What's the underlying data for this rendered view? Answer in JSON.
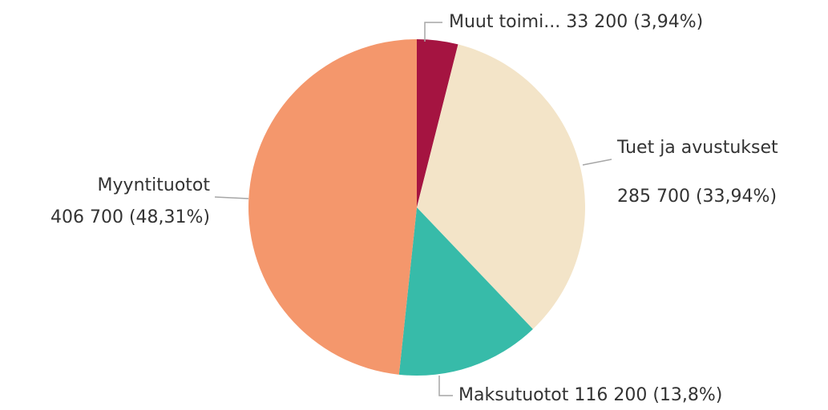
{
  "chart_data": {
    "type": "pie",
    "categories": [
      "Muut toimi...",
      "Tuet ja avustukset",
      "Maksutuotot",
      "Myyntituotot"
    ],
    "values": [
      33200,
      285700,
      116200,
      406700
    ],
    "value_labels": [
      "33 200 (3,94%)",
      "285 700 (33,94%)",
      "116 200 (13,8%)",
      "406 700 (48,31%)"
    ],
    "colors": [
      "#a51441",
      "#f3e4c8",
      "#37bba9",
      "#f4976c"
    ]
  }
}
